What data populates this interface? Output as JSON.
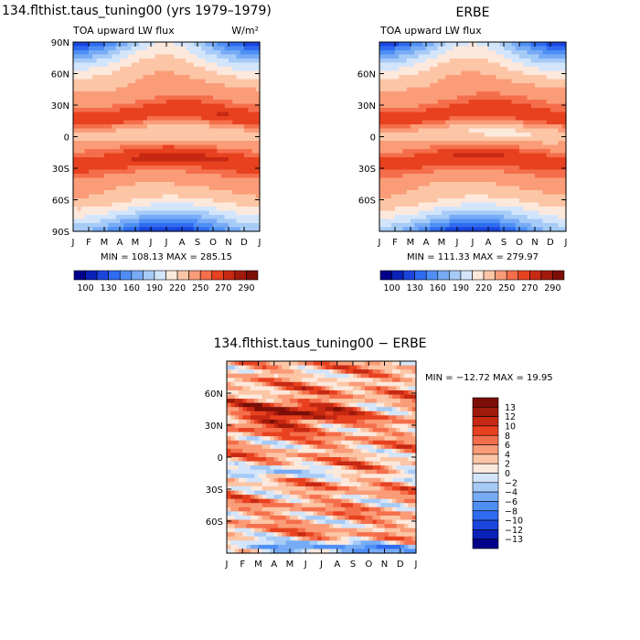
{
  "chart_data": [
    {
      "type": "heatmap",
      "title": "134.flthist.taus_tuning00 (yrs 1979–1979)",
      "subtitle": "TOA upward LW flux",
      "units": "W/m²",
      "x_ticklabels": [
        "J",
        "F",
        "M",
        "A",
        "M",
        "J",
        "J",
        "A",
        "S",
        "O",
        "N",
        "D",
        "J"
      ],
      "y_ticklabels": [
        "90N",
        "60N",
        "30N",
        "0",
        "30S",
        "60S",
        "90S"
      ],
      "ylim": [
        -90,
        90
      ],
      "stats": "MIN = 108.13  MAX = 285.15",
      "colorbar_labels": [
        "100",
        "130",
        "160",
        "190",
        "220",
        "250",
        "270",
        "290"
      ],
      "levels": [
        100,
        115,
        130,
        145,
        160,
        175,
        190,
        205,
        220,
        235,
        250,
        260,
        270,
        280,
        290
      ]
    },
    {
      "type": "heatmap",
      "title": "ERBE",
      "subtitle": "TOA upward LW flux",
      "x_ticklabels": [
        "J",
        "F",
        "M",
        "A",
        "M",
        "J",
        "J",
        "A",
        "S",
        "O",
        "N",
        "D",
        "J"
      ],
      "y_ticklabels": [
        "60N",
        "30N",
        "0",
        "30S",
        "60S"
      ],
      "ylim": [
        -90,
        90
      ],
      "stats": "MIN = 111.33  MAX = 279.97",
      "colorbar_labels": [
        "100",
        "130",
        "160",
        "190",
        "220",
        "250",
        "270",
        "290"
      ],
      "levels": [
        100,
        115,
        130,
        145,
        160,
        175,
        190,
        205,
        220,
        235,
        250,
        260,
        270,
        280,
        290
      ]
    },
    {
      "type": "heatmap",
      "title": "134.flthist.taus_tuning00 − ERBE",
      "x_ticklabels": [
        "J",
        "F",
        "M",
        "A",
        "M",
        "J",
        "J",
        "A",
        "S",
        "O",
        "N",
        "D",
        "J"
      ],
      "y_ticklabels": [
        "60N",
        "30N",
        "0",
        "30S",
        "60S"
      ],
      "ylim": [
        -90,
        90
      ],
      "stats": "MIN = −12.72  MAX =  19.95",
      "colorbar_labels": [
        "13",
        "12",
        "10",
        "8",
        "6",
        "4",
        "2",
        "0",
        "−2",
        "−4",
        "−6",
        "−8",
        "−10",
        "−12",
        "−13"
      ],
      "levels": [
        -13,
        -12,
        -10,
        -8,
        -6,
        -4,
        -2,
        0,
        2,
        4,
        6,
        8,
        10,
        12,
        13
      ]
    }
  ],
  "colors": {
    "absolute_scale": [
      "#00008b",
      "#0a21b8",
      "#1b46de",
      "#2f6bf0",
      "#4f8ff5",
      "#77abf6",
      "#a6cbf7",
      "#d3e5fb",
      "#fde8dc",
      "#fcc6a6",
      "#fa9c78",
      "#f56e4b",
      "#e8411f",
      "#c62812",
      "#a01a0c",
      "#7c0e07"
    ],
    "diff_scale": [
      "#00008b",
      "#0a21b8",
      "#1b46de",
      "#2f6bf0",
      "#4f8ff5",
      "#77abf6",
      "#a6cbf7",
      "#d3e5fb",
      "#fde8dc",
      "#fcc6a6",
      "#fa9c78",
      "#f56e4b",
      "#e8411f",
      "#c62812",
      "#a01a0c",
      "#7c0e07"
    ]
  }
}
